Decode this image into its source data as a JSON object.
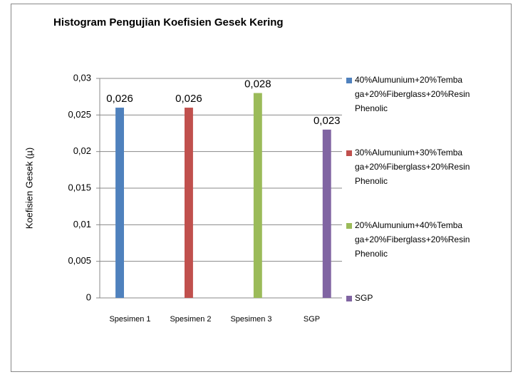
{
  "chart_data": {
    "type": "bar",
    "title": "Histogram Pengujian Koefisien Gesek Kering",
    "y_label": "Koefisien Gesek (µ)",
    "categories": [
      "Spesimen 1",
      "Spesimen 2",
      "Spesimen 3",
      "SGP"
    ],
    "series": [
      {
        "name": "40%Alumunium+20%Tembaga+20%Fiberglass+20%Resin Phenolic",
        "color": "#4f81bd",
        "values": [
          0.026,
          null,
          null,
          null
        ],
        "value_labels": [
          "0,026",
          null,
          null,
          null
        ]
      },
      {
        "name": "30%Alumunium+30%Tembaga+20%Fiberglass+20%Resin Phenolic",
        "color": "#c0504d",
        "values": [
          null,
          0.026,
          null,
          null
        ],
        "value_labels": [
          null,
          "0,026",
          null,
          null
        ]
      },
      {
        "name": "20%Alumunium+40%Tembaga+20%Fiberglass+20%Resin Phenolic",
        "color": "#9bbb59",
        "values": [
          null,
          null,
          0.028,
          null
        ],
        "value_labels": [
          null,
          null,
          "0,028",
          null
        ]
      },
      {
        "name": "SGP",
        "color": "#8064a2",
        "values": [
          null,
          null,
          null,
          0.023
        ],
        "value_labels": [
          null,
          null,
          null,
          "0,023"
        ]
      }
    ],
    "ylim": [
      0,
      0.03
    ],
    "yticks": [
      0,
      {
        "value": 0.005,
        "label": "0,005"
      },
      {
        "value": 0.01,
        "label": "0,01"
      },
      {
        "value": 0.015,
        "label": "0,015"
      },
      {
        "value": 0.02,
        "label": "0,02"
      },
      {
        "value": 0.025,
        "label": "0,025"
      },
      {
        "value": 0.03,
        "label": "0,03"
      }
    ],
    "grid": true,
    "legend": "right"
  }
}
